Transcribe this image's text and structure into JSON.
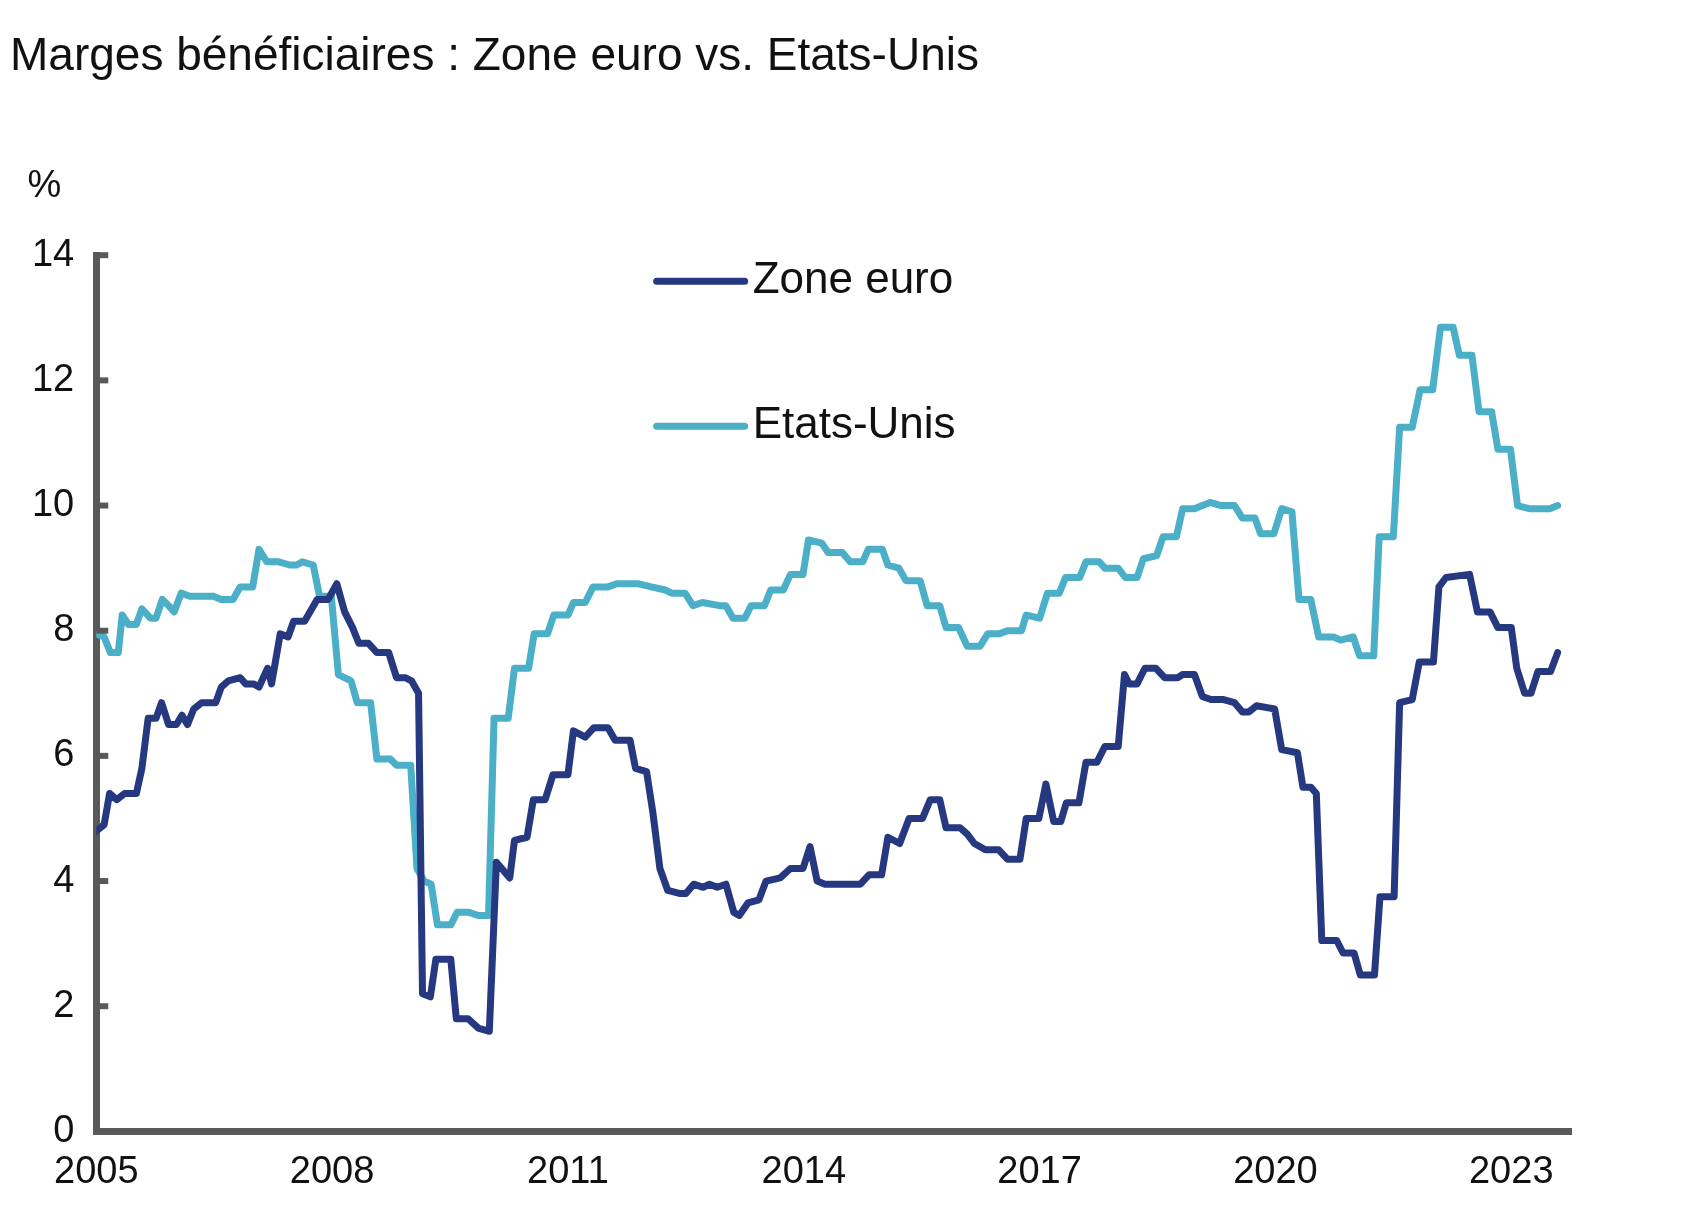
{
  "chart_data": {
    "type": "line",
    "title": "Marges bénéficiaires : Zone euro vs. Etats-Unis",
    "ylabel": "%",
    "xlim": [
      2005,
      2023.76
    ],
    "xticks": [
      2005,
      2008,
      2011,
      2014,
      2017,
      2020,
      2023
    ],
    "ylim": [
      0,
      14
    ],
    "yticks": [
      0,
      2,
      4,
      6,
      8,
      10,
      12,
      14
    ],
    "grid": false,
    "legend": "top",
    "marker": "none",
    "line_style": "solid",
    "series": [
      {
        "name": "Zone euro",
        "color": "#253880",
        "x": [
          2005.0,
          2005.1,
          2005.17,
          2005.26,
          2005.36,
          2005.51,
          2005.58,
          2005.66,
          2005.76,
          2005.83,
          2005.92,
          2006.02,
          2006.09,
          2006.16,
          2006.24,
          2006.34,
          2006.52,
          2006.59,
          2006.68,
          2006.83,
          2006.9,
          2007.0,
          2007.07,
          2007.18,
          2007.23,
          2007.34,
          2007.44,
          2007.51,
          2007.65,
          2007.81,
          2007.95,
          2008.06,
          2008.16,
          2008.26,
          2008.34,
          2008.46,
          2008.57,
          2008.72,
          2008.82,
          2008.93,
          2009.01,
          2009.1,
          2009.15,
          2009.25,
          2009.32,
          2009.51,
          2009.58,
          2009.73,
          2009.86,
          2010.0,
          2010.09,
          2010.26,
          2010.32,
          2010.48,
          2010.56,
          2010.71,
          2010.81,
          2011.0,
          2011.07,
          2011.22,
          2011.33,
          2011.51,
          2011.6,
          2011.79,
          2011.86,
          2012.0,
          2012.08,
          2012.17,
          2012.27,
          2012.43,
          2012.5,
          2012.6,
          2012.72,
          2012.8,
          2012.9,
          2013.01,
          2013.11,
          2013.18,
          2013.29,
          2013.43,
          2013.52,
          2013.7,
          2013.83,
          2013.99,
          2014.08,
          2014.17,
          2014.27,
          2014.72,
          2014.83,
          2014.99,
          2015.07,
          2015.22,
          2015.34,
          2015.51,
          2015.61,
          2015.73,
          2015.81,
          2015.99,
          2016.08,
          2016.17,
          2016.31,
          2016.48,
          2016.59,
          2016.75,
          2016.83,
          2016.99,
          2017.08,
          2017.18,
          2017.27,
          2017.34,
          2017.5,
          2017.59,
          2017.73,
          2017.83,
          2018.0,
          2018.08,
          2018.14,
          2018.24,
          2018.34,
          2018.48,
          2018.59,
          2018.76,
          2018.82,
          2018.97,
          2019.07,
          2019.18,
          2019.34,
          2019.48,
          2019.58,
          2019.66,
          2019.76,
          2019.99,
          2020.08,
          2020.28,
          2020.35,
          2020.45,
          2020.52,
          2020.59,
          2020.78,
          2020.86,
          2021.0,
          2021.08,
          2021.26,
          2021.33,
          2021.51,
          2021.58,
          2021.74,
          2021.83,
          2022.01,
          2022.08,
          2022.17,
          2022.47,
          2022.57,
          2022.73,
          2022.83,
          2023.0,
          2023.07,
          2023.17,
          2023.25,
          2023.34,
          2023.5,
          2023.59
        ],
        "values": [
          4.8,
          4.9,
          5.4,
          5.3,
          5.4,
          5.4,
          5.8,
          6.6,
          6.6,
          6.85,
          6.5,
          6.5,
          6.65,
          6.5,
          6.75,
          6.85,
          6.85,
          7.1,
          7.2,
          7.25,
          7.15,
          7.15,
          7.1,
          7.4,
          7.15,
          7.95,
          7.9,
          8.15,
          8.15,
          8.5,
          8.5,
          8.75,
          8.3,
          8.05,
          7.8,
          7.8,
          7.65,
          7.65,
          7.25,
          7.25,
          7.2,
          7.0,
          2.2,
          2.15,
          2.75,
          2.75,
          1.8,
          1.8,
          1.65,
          1.6,
          4.3,
          4.05,
          4.65,
          4.7,
          5.3,
          5.3,
          5.7,
          5.7,
          6.4,
          6.3,
          6.45,
          6.45,
          6.25,
          6.25,
          5.8,
          5.75,
          5.1,
          4.2,
          3.85,
          3.8,
          3.8,
          3.95,
          3.9,
          3.95,
          3.9,
          3.95,
          3.5,
          3.45,
          3.65,
          3.7,
          4.0,
          4.05,
          4.2,
          4.2,
          4.55,
          4.0,
          3.95,
          3.95,
          4.1,
          4.1,
          4.7,
          4.6,
          5.0,
          5.0,
          5.3,
          5.3,
          4.85,
          4.85,
          4.75,
          4.6,
          4.5,
          4.5,
          4.35,
          4.35,
          5.0,
          5.0,
          5.55,
          4.95,
          4.95,
          5.25,
          5.25,
          5.9,
          5.9,
          6.15,
          6.15,
          7.3,
          7.15,
          7.15,
          7.4,
          7.4,
          7.25,
          7.25,
          7.3,
          7.3,
          6.95,
          6.9,
          6.9,
          6.85,
          6.7,
          6.7,
          6.8,
          6.75,
          6.1,
          6.05,
          5.5,
          5.5,
          5.4,
          3.05,
          3.05,
          2.85,
          2.85,
          2.5,
          2.5,
          3.75,
          3.75,
          6.85,
          6.9,
          7.5,
          7.5,
          8.7,
          8.85,
          8.9,
          8.3,
          8.3,
          8.05,
          8.05,
          7.4,
          7.0,
          7.0,
          7.35,
          7.35,
          7.65
        ]
      },
      {
        "name": "Etats-Unis",
        "color": "#4bafc8",
        "x": [
          2005.0,
          2005.1,
          2005.18,
          2005.28,
          2005.33,
          2005.41,
          2005.51,
          2005.58,
          2005.69,
          2005.76,
          2005.84,
          2005.92,
          2005.99,
          2006.08,
          2006.19,
          2006.34,
          2006.49,
          2006.59,
          2006.74,
          2006.83,
          2006.99,
          2007.07,
          2007.17,
          2007.32,
          2007.46,
          2007.55,
          2007.62,
          2007.76,
          2007.84,
          2007.99,
          2008.08,
          2008.24,
          2008.32,
          2008.49,
          2008.57,
          2008.74,
          2008.82,
          2009.0,
          2009.08,
          2009.17,
          2009.26,
          2009.34,
          2009.51,
          2009.59,
          2009.74,
          2009.86,
          2009.99,
          2010.06,
          2010.24,
          2010.32,
          2010.5,
          2010.57,
          2010.74,
          2010.82,
          2011.0,
          2011.07,
          2011.22,
          2011.32,
          2011.51,
          2011.62,
          2011.9,
          2012.06,
          2012.24,
          2012.32,
          2012.49,
          2012.59,
          2012.71,
          2012.93,
          2013.01,
          2013.1,
          2013.25,
          2013.33,
          2013.5,
          2013.58,
          2013.74,
          2013.83,
          2013.99,
          2014.06,
          2014.23,
          2014.31,
          2014.49,
          2014.59,
          2014.75,
          2014.82,
          2015.0,
          2015.07,
          2015.21,
          2015.3,
          2015.48,
          2015.57,
          2015.73,
          2015.81,
          2015.97,
          2016.08,
          2016.24,
          2016.34,
          2016.49,
          2016.59,
          2016.77,
          2016.83,
          2017.0,
          2017.1,
          2017.25,
          2017.33,
          2017.51,
          2017.59,
          2017.76,
          2017.83,
          2018.0,
          2018.09,
          2018.24,
          2018.32,
          2018.49,
          2018.57,
          2018.74,
          2018.82,
          2018.97,
          2019.07,
          2019.17,
          2019.31,
          2019.48,
          2019.58,
          2019.74,
          2019.81,
          2019.98,
          2020.08,
          2020.21,
          2020.3,
          2020.45,
          2020.55,
          2020.74,
          2020.83,
          2020.99,
          2021.07,
          2021.25,
          2021.32,
          2021.5,
          2021.58,
          2021.74,
          2021.84,
          2022.0,
          2022.1,
          2022.26,
          2022.34,
          2022.5,
          2022.59,
          2022.75,
          2022.83,
          2022.99,
          2023.08,
          2023.23,
          2023.49,
          2023.59
        ],
        "values": [
          7.95,
          7.9,
          7.65,
          7.65,
          8.25,
          8.1,
          8.1,
          8.35,
          8.2,
          8.2,
          8.5,
          8.4,
          8.3,
          8.6,
          8.55,
          8.55,
          8.55,
          8.5,
          8.5,
          8.7,
          8.7,
          9.3,
          9.1,
          9.1,
          9.05,
          9.05,
          9.1,
          9.05,
          8.55,
          8.55,
          7.3,
          7.2,
          6.85,
          6.85,
          5.95,
          5.95,
          5.85,
          5.85,
          4.2,
          4.0,
          3.95,
          3.3,
          3.3,
          3.5,
          3.5,
          3.45,
          3.45,
          6.6,
          6.6,
          7.4,
          7.4,
          7.95,
          7.95,
          8.25,
          8.25,
          8.45,
          8.45,
          8.7,
          8.7,
          8.75,
          8.75,
          8.7,
          8.65,
          8.6,
          8.6,
          8.4,
          8.45,
          8.4,
          8.4,
          8.2,
          8.2,
          8.4,
          8.4,
          8.65,
          8.65,
          8.9,
          8.9,
          9.45,
          9.4,
          9.25,
          9.25,
          9.1,
          9.1,
          9.3,
          9.3,
          9.05,
          9.0,
          8.8,
          8.8,
          8.4,
          8.4,
          8.05,
          8.05,
          7.75,
          7.75,
          7.95,
          7.95,
          8.0,
          8.0,
          8.25,
          8.2,
          8.6,
          8.6,
          8.85,
          8.85,
          9.1,
          9.1,
          9.0,
          9.0,
          8.85,
          8.85,
          9.15,
          9.2,
          9.5,
          9.5,
          9.95,
          9.95,
          10.0,
          10.05,
          10.0,
          10.0,
          9.8,
          9.8,
          9.55,
          9.55,
          9.95,
          9.9,
          8.5,
          8.5,
          7.9,
          7.9,
          7.85,
          7.9,
          7.6,
          7.6,
          9.5,
          9.5,
          11.25,
          11.25,
          11.85,
          11.85,
          12.85,
          12.85,
          12.4,
          12.4,
          11.5,
          11.5,
          10.9,
          10.9,
          10.0,
          9.95,
          9.95,
          10.0
        ]
      }
    ]
  }
}
